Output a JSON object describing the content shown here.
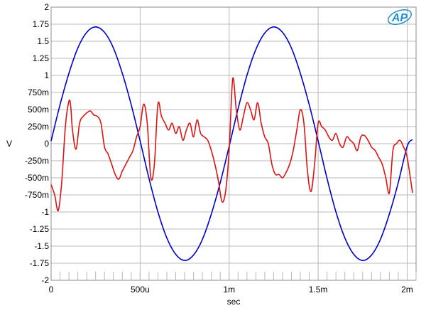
{
  "colors": {
    "background": "#ffffff",
    "grid": "#b8b8b8",
    "frame": "#8c8c8c",
    "logo": "#1e90c8"
  },
  "logo": {
    "text": "AP"
  },
  "chart_data": {
    "type": "line",
    "title": "",
    "xlabel": "sec",
    "ylabel": "V",
    "xlim": [
      0,
      0.00205
    ],
    "ylim": [
      -2,
      2
    ],
    "grid": true,
    "legend": "none",
    "x_ticks": [
      {
        "value": 0,
        "label": "0"
      },
      {
        "value": 0.0005,
        "label": "500u"
      },
      {
        "value": 0.001,
        "label": "1m"
      },
      {
        "value": 0.0015,
        "label": "1.5m"
      },
      {
        "value": 0.002,
        "label": "2m"
      }
    ],
    "y_ticks": [
      {
        "value": 2,
        "label": "2"
      },
      {
        "value": 1.75,
        "label": "1.75"
      },
      {
        "value": 1.5,
        "label": "1.5"
      },
      {
        "value": 1.25,
        "label": "1.25"
      },
      {
        "value": 1,
        "label": "1"
      },
      {
        "value": 0.75,
        "label": "750m"
      },
      {
        "value": 0.5,
        "label": "500m"
      },
      {
        "value": 0.25,
        "label": "250m"
      },
      {
        "value": 0,
        "label": "0"
      },
      {
        "value": -0.25,
        "label": "-250m"
      },
      {
        "value": -0.5,
        "label": "-500m"
      },
      {
        "value": -0.75,
        "label": "-750m"
      },
      {
        "value": -1,
        "label": "-1"
      },
      {
        "value": -1.25,
        "label": "-1.25"
      },
      {
        "value": -1.5,
        "label": "-1.5"
      },
      {
        "value": -1.75,
        "label": "-1.75"
      },
      {
        "value": -2,
        "label": "-2"
      }
    ],
    "series": [
      {
        "color": "#0000c8",
        "x": [
          0,
          5e-05,
          0.0001,
          0.00015,
          0.0002,
          0.00025,
          0.0003,
          0.00035,
          0.0004,
          0.00045,
          0.0005,
          0.00055,
          0.0006,
          0.00065,
          0.0007,
          0.00075,
          0.0008,
          0.00085,
          0.0009,
          0.00095,
          0.001,
          0.00105,
          0.0011,
          0.00115,
          0.0012,
          0.00125,
          0.0013,
          0.00135,
          0.0014,
          0.00145,
          0.0015,
          0.00155,
          0.0016,
          0.00165,
          0.0017,
          0.00175,
          0.0018,
          0.00185,
          0.0019,
          0.00195,
          0.002,
          0.00203
        ],
        "y": [
          0.04,
          0.57,
          1.03,
          1.4,
          1.63,
          1.71,
          1.63,
          1.4,
          1.03,
          0.57,
          0.04,
          -0.51,
          -1.0,
          -1.38,
          -1.62,
          -1.71,
          -1.63,
          -1.4,
          -1.03,
          -0.57,
          -0.04,
          0.51,
          1.0,
          1.38,
          1.62,
          1.71,
          1.63,
          1.4,
          1.03,
          0.57,
          0.04,
          -0.51,
          -1.0,
          -1.38,
          -1.62,
          -1.71,
          -1.63,
          -1.4,
          -1.03,
          -0.57,
          -0.04,
          0.06
        ]
      },
      {
        "color": "#dc1414",
        "x": [
          0,
          2e-05,
          4e-05,
          6e-05,
          8e-05,
          0.0001,
          0.00011,
          0.00012,
          0.00014,
          0.00016,
          0.00018,
          0.0002,
          0.00022,
          0.00024,
          0.00026,
          0.00028,
          0.0003,
          0.00032,
          0.00034,
          0.00036,
          0.00038,
          0.0004,
          0.00042,
          0.00044,
          0.00046,
          0.00048,
          0.0005,
          0.00052,
          0.00054,
          0.00056,
          0.00058,
          0.0006,
          0.00062,
          0.00064,
          0.00066,
          0.00068,
          0.0007,
          0.00072,
          0.00074,
          0.00076,
          0.00078,
          0.0008,
          0.00082,
          0.00084,
          0.00086,
          0.00088,
          0.0009,
          0.00092,
          0.00094,
          0.00096,
          0.00098,
          0.001,
          0.00102,
          0.00104,
          0.00106,
          0.00108,
          0.0011,
          0.00112,
          0.00114,
          0.00116,
          0.00118,
          0.0012,
          0.00122,
          0.00124,
          0.00126,
          0.00128,
          0.0013,
          0.00132,
          0.00134,
          0.00136,
          0.00138,
          0.0014,
          0.00142,
          0.00144,
          0.00146,
          0.00148,
          0.0015,
          0.00152,
          0.00154,
          0.00156,
          0.00158,
          0.0016,
          0.00162,
          0.00164,
          0.00166,
          0.00168,
          0.0017,
          0.00172,
          0.00174,
          0.00176,
          0.00178,
          0.0018,
          0.00182,
          0.00184,
          0.00186,
          0.00188,
          0.0019,
          0.00192,
          0.00194,
          0.00196,
          0.00198,
          0.002,
          0.00203
        ],
        "y": [
          -0.6,
          -0.75,
          -0.98,
          -0.55,
          0.25,
          0.62,
          0.55,
          0.2,
          -0.08,
          0.3,
          0.4,
          0.45,
          0.48,
          0.42,
          0.4,
          0.3,
          -0.05,
          -0.15,
          -0.3,
          -0.45,
          -0.52,
          -0.4,
          -0.3,
          -0.2,
          -0.1,
          0.1,
          0.25,
          0.58,
          0.3,
          -0.5,
          -0.3,
          0.58,
          0.4,
          0.3,
          0.2,
          0.3,
          0.15,
          0.25,
          0.05,
          0.2,
          0.3,
          0.1,
          0.35,
          0.15,
          0.1,
          0.05,
          -0.1,
          -0.3,
          -0.55,
          -0.85,
          -0.7,
          -0.1,
          0.95,
          0.5,
          0.2,
          0.4,
          0.6,
          0.5,
          0.35,
          0.6,
          0.3,
          0.1,
          0.0,
          -0.3,
          -0.45,
          -0.45,
          -0.5,
          -0.42,
          -0.3,
          -0.1,
          0.2,
          0.5,
          0.3,
          -0.4,
          -0.7,
          -0.3,
          0.3,
          0.25,
          0.2,
          0.1,
          0.05,
          0.15,
          0.0,
          -0.05,
          0.1,
          0.05,
          0.0,
          -0.1,
          0.1,
          0.12,
          0.05,
          -0.05,
          -0.1,
          -0.2,
          -0.3,
          -0.5,
          -0.72,
          -0.1,
          0.0,
          0.05,
          -0.05,
          -0.2,
          -0.72
        ]
      }
    ]
  }
}
